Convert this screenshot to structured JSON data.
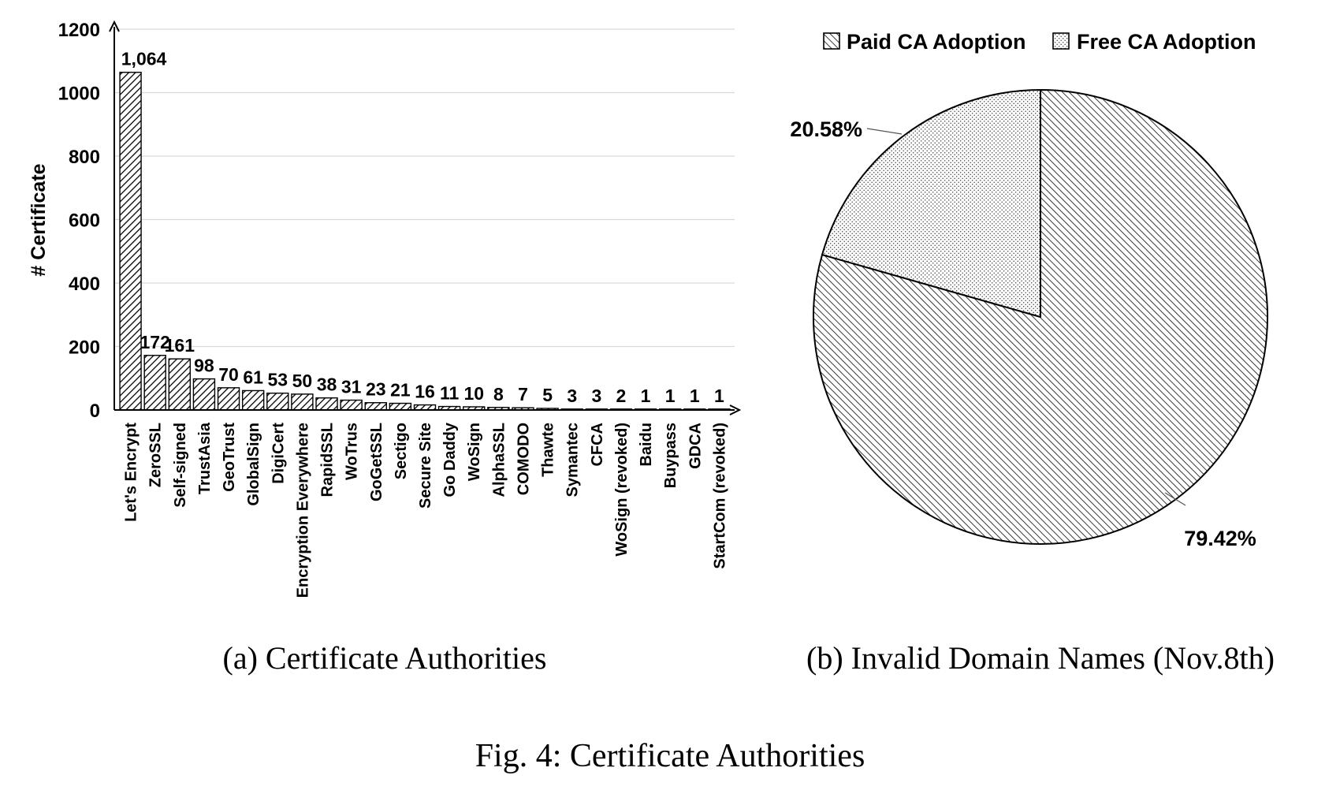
{
  "figure_caption": "Fig. 4: Certificate Authorities",
  "chart_data": [
    {
      "type": "bar",
      "caption": "(a) Certificate Authorities",
      "ylabel": "# Certificate",
      "ylim": [
        0,
        1200
      ],
      "yticks": [
        "0",
        "200",
        "400",
        "600",
        "800",
        "1000",
        "1200"
      ],
      "grid": true,
      "pattern": "diagonal-hatch",
      "categories": [
        "Let's Encrypt",
        "ZeroSSL",
        "Self-signed",
        "TrustAsia",
        "GeoTrust",
        "GlobalSign",
        "DigiCert",
        "Encryption Everywhere",
        "RapidSSL",
        "WoTrus",
        "GoGetSSL",
        "Sectigo",
        "Secure Site",
        "Go Daddy",
        "WoSign",
        "AlphaSSL",
        "COMODO",
        "Thawte",
        "Symantec",
        "CFCA",
        "WoSign (revoked)",
        "Baidu",
        "Buypass",
        "GDCA",
        "StartCom (revoked)"
      ],
      "values": [
        1064,
        172,
        161,
        98,
        70,
        61,
        53,
        50,
        38,
        31,
        23,
        21,
        16,
        11,
        10,
        8,
        7,
        5,
        3,
        3,
        2,
        1,
        1,
        1,
        1
      ],
      "data_labels": [
        "1,064",
        "172",
        "161",
        "98",
        "70",
        "61",
        "53",
        "50",
        "38",
        "31",
        "23",
        "21",
        "16",
        "11",
        "10",
        "8",
        "7",
        "5",
        "3",
        "3",
        "2",
        "1",
        "1",
        "1",
        "1"
      ]
    },
    {
      "type": "pie",
      "caption": "(b) Invalid Domain Names (Nov.8th)",
      "legend_position": "top",
      "slices": [
        {
          "name": "Paid CA Adoption",
          "value": 79.42,
          "label": "79.42%",
          "pattern": "diagonal-hatch"
        },
        {
          "name": "Free CA Adoption",
          "value": 20.58,
          "label": "20.58%",
          "pattern": "dots"
        }
      ]
    }
  ]
}
